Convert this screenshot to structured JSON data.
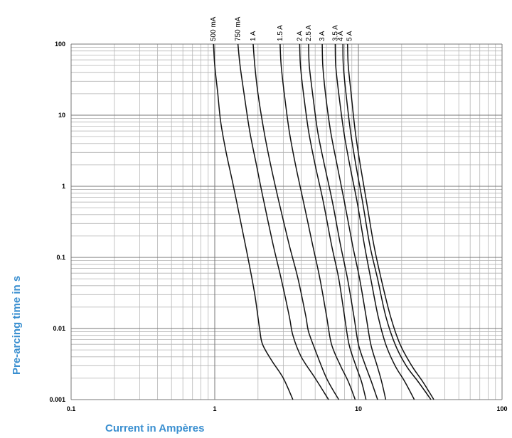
{
  "chart_data": {
    "type": "line",
    "title": "",
    "xlabel": "Current in Ampères",
    "ylabel": "Pre-arcing time in s",
    "x_scale": "log",
    "y_scale": "log",
    "xlim": [
      0.1,
      100
    ],
    "ylim": [
      0.001,
      100
    ],
    "grid": true,
    "x_ticks": [
      {
        "value": 0.1,
        "label": "0.1"
      },
      {
        "value": 1,
        "label": "1"
      },
      {
        "value": 10,
        "label": "10"
      },
      {
        "value": 100,
        "label": "100"
      }
    ],
    "y_ticks": [
      {
        "value": 0.001,
        "label": "0.001"
      },
      {
        "value": 0.01,
        "label": "0.01"
      },
      {
        "value": 0.1,
        "label": "0.1"
      },
      {
        "value": 1,
        "label": "1"
      },
      {
        "value": 10,
        "label": "10"
      },
      {
        "value": 100,
        "label": "100"
      }
    ],
    "series": [
      {
        "name": "500 mA",
        "points": [
          [
            0.98,
            100
          ],
          [
            1.0,
            50
          ],
          [
            1.05,
            20
          ],
          [
            1.1,
            8
          ],
          [
            1.2,
            3
          ],
          [
            1.35,
            1
          ],
          [
            1.5,
            0.35
          ],
          [
            1.7,
            0.1
          ],
          [
            1.9,
            0.03
          ],
          [
            2.05,
            0.01
          ],
          [
            2.15,
            0.006
          ],
          [
            2.5,
            0.0035
          ],
          [
            3.0,
            0.002
          ],
          [
            3.5,
            0.001
          ]
        ]
      },
      {
        "name": "750 mA",
        "points": [
          [
            1.45,
            100
          ],
          [
            1.5,
            50
          ],
          [
            1.6,
            20
          ],
          [
            1.75,
            6
          ],
          [
            1.95,
            2
          ],
          [
            2.2,
            0.6
          ],
          [
            2.55,
            0.15
          ],
          [
            2.9,
            0.05
          ],
          [
            3.3,
            0.015
          ],
          [
            3.5,
            0.008
          ],
          [
            4.0,
            0.004
          ],
          [
            5.0,
            0.002
          ],
          [
            6.2,
            0.001
          ]
        ]
      },
      {
        "name": "1 A",
        "points": [
          [
            1.85,
            100
          ],
          [
            1.9,
            50
          ],
          [
            2.0,
            20
          ],
          [
            2.2,
            6
          ],
          [
            2.45,
            2
          ],
          [
            2.8,
            0.6
          ],
          [
            3.3,
            0.15
          ],
          [
            3.8,
            0.05
          ],
          [
            4.3,
            0.015
          ],
          [
            4.5,
            0.009
          ],
          [
            5.0,
            0.005
          ],
          [
            6.0,
            0.002
          ],
          [
            7.3,
            0.001
          ]
        ]
      },
      {
        "name": "1.5 A",
        "points": [
          [
            2.85,
            100
          ],
          [
            2.9,
            50
          ],
          [
            3.05,
            20
          ],
          [
            3.3,
            6
          ],
          [
            3.65,
            2
          ],
          [
            4.15,
            0.6
          ],
          [
            4.8,
            0.15
          ],
          [
            5.4,
            0.05
          ],
          [
            6.0,
            0.015
          ],
          [
            6.5,
            0.006
          ],
          [
            7.5,
            0.003
          ],
          [
            8.5,
            0.0018
          ],
          [
            9.5,
            0.001
          ]
        ]
      },
      {
        "name": "2 A",
        "points": [
          [
            3.9,
            100
          ],
          [
            3.95,
            50
          ],
          [
            4.15,
            20
          ],
          [
            4.5,
            6
          ],
          [
            5.0,
            2
          ],
          [
            5.7,
            0.6
          ],
          [
            6.5,
            0.15
          ],
          [
            7.3,
            0.05
          ],
          [
            8.0,
            0.015
          ],
          [
            8.6,
            0.006
          ],
          [
            9.6,
            0.003
          ],
          [
            10.5,
            0.0018
          ],
          [
            11.3,
            0.001
          ]
        ]
      },
      {
        "name": "2.5 A",
        "points": [
          [
            4.5,
            100
          ],
          [
            4.55,
            50
          ],
          [
            4.8,
            20
          ],
          [
            5.2,
            6
          ],
          [
            5.8,
            2
          ],
          [
            6.6,
            0.6
          ],
          [
            7.5,
            0.15
          ],
          [
            8.4,
            0.05
          ],
          [
            9.3,
            0.015
          ],
          [
            10.0,
            0.006
          ],
          [
            11.2,
            0.003
          ],
          [
            12.3,
            0.0018
          ],
          [
            13.6,
            0.001
          ]
        ]
      },
      {
        "name": "3 A",
        "points": [
          [
            5.6,
            100
          ],
          [
            5.65,
            50
          ],
          [
            5.9,
            20
          ],
          [
            6.4,
            6
          ],
          [
            7.1,
            2
          ],
          [
            8.0,
            0.6
          ],
          [
            9.1,
            0.15
          ],
          [
            10.2,
            0.05
          ],
          [
            11.3,
            0.015
          ],
          [
            12.2,
            0.006
          ],
          [
            13.5,
            0.003
          ],
          [
            14.5,
            0.0018
          ],
          [
            15.5,
            0.001
          ]
        ]
      },
      {
        "name": "3.5 A",
        "points": [
          [
            6.9,
            100
          ],
          [
            6.95,
            50
          ],
          [
            7.3,
            20
          ],
          [
            7.9,
            6
          ],
          [
            8.7,
            2
          ],
          [
            9.8,
            0.6
          ],
          [
            11.0,
            0.15
          ],
          [
            12.2,
            0.05
          ],
          [
            13.7,
            0.015
          ],
          [
            15.5,
            0.006
          ],
          [
            18.0,
            0.003
          ],
          [
            21.0,
            0.0018
          ],
          [
            24.5,
            0.001
          ]
        ]
      },
      {
        "name": "4 A",
        "points": [
          [
            7.8,
            100
          ],
          [
            7.85,
            50
          ],
          [
            8.2,
            20
          ],
          [
            8.8,
            6
          ],
          [
            9.6,
            2
          ],
          [
            10.7,
            0.6
          ],
          [
            12.0,
            0.15
          ],
          [
            13.6,
            0.05
          ],
          [
            15.5,
            0.015
          ],
          [
            18.0,
            0.006
          ],
          [
            21.5,
            0.003
          ],
          [
            26.0,
            0.0018
          ],
          [
            32.0,
            0.001
          ]
        ]
      },
      {
        "name": "5 A",
        "points": [
          [
            8.4,
            100
          ],
          [
            8.5,
            50
          ],
          [
            8.9,
            20
          ],
          [
            9.5,
            6
          ],
          [
            10.3,
            2
          ],
          [
            11.4,
            0.6
          ],
          [
            12.8,
            0.15
          ],
          [
            14.4,
            0.05
          ],
          [
            16.7,
            0.015
          ],
          [
            19.5,
            0.006
          ],
          [
            23.5,
            0.003
          ],
          [
            28.0,
            0.0018
          ],
          [
            33.5,
            0.001
          ]
        ]
      }
    ]
  }
}
